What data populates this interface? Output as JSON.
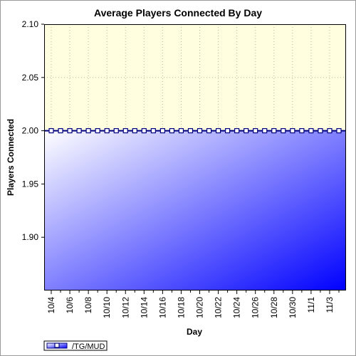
{
  "chart_data": {
    "type": "area",
    "title": "Average Players Connected By Day",
    "xlabel": "Day",
    "ylabel": "Players Connected",
    "ylim": [
      1.85,
      2.1
    ],
    "y_ticks": [
      "2.10",
      "2.05",
      "2.00",
      "1.95",
      "1.90"
    ],
    "y_tick_values": [
      2.1,
      2.05,
      2.0,
      1.95,
      1.9
    ],
    "x_tick_labels": [
      "10/4",
      "10/6",
      "10/8",
      "10/10",
      "10/12",
      "10/14",
      "10/16",
      "10/18",
      "10/20",
      "10/22",
      "10/24",
      "10/26",
      "10/28",
      "10/30",
      "11/1",
      "11/3"
    ],
    "x": [
      "10/4",
      "10/5",
      "10/6",
      "10/7",
      "10/8",
      "10/9",
      "10/10",
      "10/11",
      "10/12",
      "10/13",
      "10/14",
      "10/15",
      "10/16",
      "10/17",
      "10/18",
      "10/19",
      "10/20",
      "10/21",
      "10/22",
      "10/23",
      "10/24",
      "10/25",
      "10/26",
      "10/27",
      "10/28",
      "10/29",
      "10/30",
      "10/31",
      "11/1",
      "11/2",
      "11/3",
      "11/4"
    ],
    "series": [
      {
        "name": "/TG/MUD",
        "values": [
          2,
          2,
          2,
          2,
          2,
          2,
          2,
          2,
          2,
          2,
          2,
          2,
          2,
          2,
          2,
          2,
          2,
          2,
          2,
          2,
          2,
          2,
          2,
          2,
          2,
          2,
          2,
          2,
          2,
          2,
          2,
          2
        ]
      }
    ],
    "grid": true,
    "legend_position": "bottom-left",
    "colors": {
      "plot_background": "#ffffe0",
      "line": "#00007f",
      "fill_light": "#ffffff",
      "fill_dark": "#0000ff",
      "marker_fill": "#ffffff",
      "grid": "#b8b89a"
    }
  }
}
